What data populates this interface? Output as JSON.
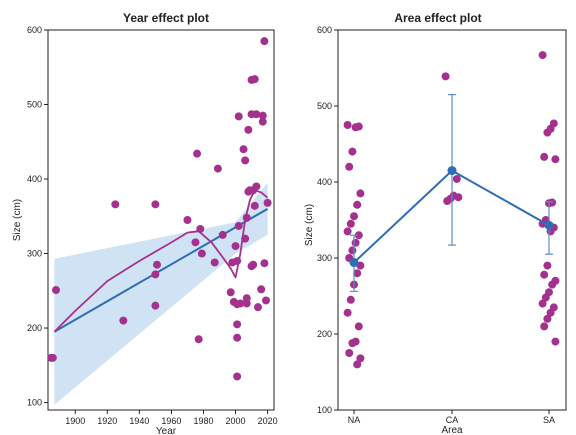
{
  "colors": {
    "point": "#a5318f",
    "fit_line": "#2f6db5",
    "ci_band": "#cfe3f5",
    "smooth": "#a5318f",
    "frame": "#222222",
    "errorbar": "#5b8fc7"
  },
  "chart_data": [
    {
      "type": "scatter",
      "title": "Year effect plot",
      "xlabel": "Year",
      "ylabel": "Size (cm)",
      "xlim": [
        1883,
        2024
      ],
      "ylim": [
        90,
        600
      ],
      "xticks": [
        1900,
        1920,
        1940,
        1960,
        1980,
        2000,
        2020
      ],
      "yticks": [
        100,
        200,
        300,
        400,
        500,
        600
      ],
      "grid": false,
      "points": [
        [
          1885,
          160
        ],
        [
          1886,
          160
        ],
        [
          1888,
          251
        ],
        [
          1925,
          366
        ],
        [
          1930,
          210
        ],
        [
          1950,
          366
        ],
        [
          1950,
          272
        ],
        [
          1950,
          230
        ],
        [
          1951,
          285
        ],
        [
          1970,
          345
        ],
        [
          1975,
          315
        ],
        [
          1976,
          434
        ],
        [
          1977,
          185
        ],
        [
          1978,
          333
        ],
        [
          1979,
          300
        ],
        [
          1987,
          288
        ],
        [
          1989,
          414
        ],
        [
          1992,
          325
        ],
        [
          1997,
          248
        ],
        [
          1998,
          288
        ],
        [
          1999,
          235
        ],
        [
          2000,
          310
        ],
        [
          2001,
          290
        ],
        [
          2001,
          232
        ],
        [
          2001,
          205
        ],
        [
          2001,
          187
        ],
        [
          2001,
          135
        ],
        [
          2002,
          337
        ],
        [
          2002,
          484
        ],
        [
          2003,
          233
        ],
        [
          2005,
          440
        ],
        [
          2006,
          425
        ],
        [
          2006,
          320
        ],
        [
          2007,
          348
        ],
        [
          2007,
          240
        ],
        [
          2007,
          233
        ],
        [
          2008,
          466
        ],
        [
          2008,
          383
        ],
        [
          2009,
          385
        ],
        [
          2010,
          487
        ],
        [
          2010,
          533
        ],
        [
          2010,
          283
        ],
        [
          2011,
          385
        ],
        [
          2011,
          285
        ],
        [
          2012,
          364
        ],
        [
          2012,
          534
        ],
        [
          2013,
          390
        ],
        [
          2013,
          487
        ],
        [
          2014,
          228
        ],
        [
          2016,
          252
        ],
        [
          2017,
          485
        ],
        [
          2017,
          477
        ],
        [
          2018,
          585
        ],
        [
          2018,
          287
        ],
        [
          2019,
          237
        ],
        [
          2020,
          368
        ]
      ],
      "fit_line": [
        [
          1887,
          195
        ],
        [
          2020,
          360
        ]
      ],
      "ci_lower": [
        [
          1887,
          97
        ],
        [
          2000,
          300
        ],
        [
          2020,
          325
        ]
      ],
      "ci_upper": [
        [
          1887,
          293
        ],
        [
          2000,
          342
        ],
        [
          2020,
          395
        ]
      ],
      "smooth_curve": [
        [
          1887,
          195
        ],
        [
          1900,
          223
        ],
        [
          1920,
          263
        ],
        [
          1940,
          290
        ],
        [
          1960,
          315
        ],
        [
          1970,
          328
        ],
        [
          1977,
          330
        ],
        [
          1985,
          315
        ],
        [
          1992,
          295
        ],
        [
          1997,
          280
        ],
        [
          2000,
          268
        ],
        [
          2003,
          300
        ],
        [
          2006,
          345
        ],
        [
          2009,
          372
        ],
        [
          2012,
          385
        ],
        [
          2016,
          382
        ],
        [
          2020,
          375
        ]
      ]
    },
    {
      "type": "scatter",
      "title": "Area effect plot",
      "xlabel": "Area",
      "ylabel": "Size (cm)",
      "categories": [
        "NA",
        "CA",
        "SA"
      ],
      "ylim": [
        100,
        600
      ],
      "yticks": [
        100,
        200,
        300,
        400,
        500,
        600
      ],
      "grid": false,
      "points": [
        {
          "category": "NA",
          "values": [
            475,
            473,
            472,
            440,
            420,
            385,
            370,
            355,
            345,
            335,
            330,
            320,
            310,
            300,
            290,
            280,
            265,
            245,
            228,
            210,
            190,
            188,
            175,
            168,
            160
          ]
        },
        {
          "category": "CA",
          "values": [
            539,
            404,
            382,
            378,
            375,
            380
          ]
        },
        {
          "category": "SA",
          "values": [
            567,
            477,
            470,
            465,
            433,
            430,
            373,
            372,
            350,
            345,
            340,
            335,
            290,
            278,
            270,
            265,
            255,
            248,
            240,
            235,
            228,
            220,
            210,
            190
          ]
        }
      ],
      "means": [
        {
          "category": "NA",
          "mean": 294,
          "lower": 256,
          "upper": 330
        },
        {
          "category": "CA",
          "mean": 415,
          "lower": 317,
          "upper": 515
        },
        {
          "category": "SA",
          "mean": 343,
          "lower": 305,
          "upper": 374
        }
      ]
    }
  ]
}
